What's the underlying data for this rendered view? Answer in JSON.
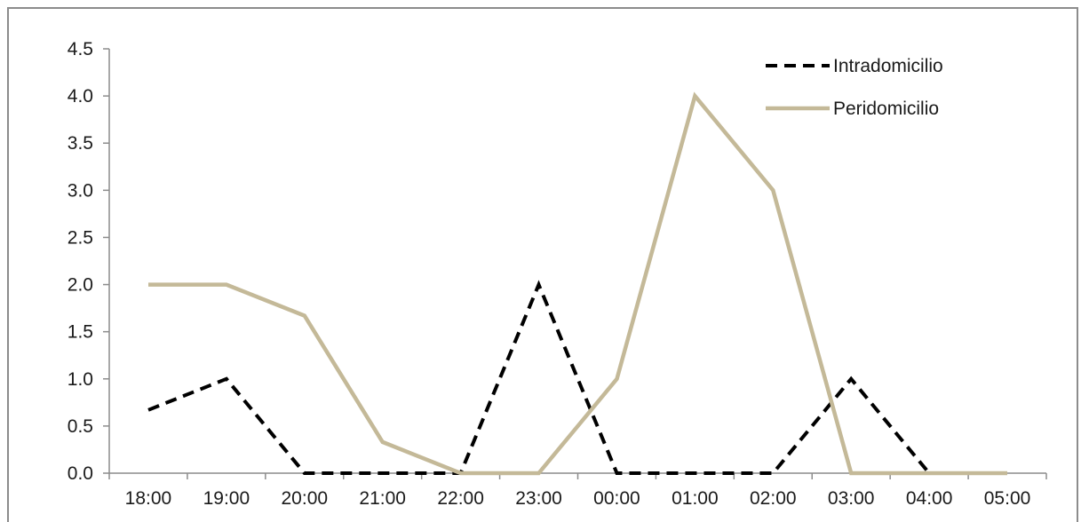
{
  "chart_data": {
    "type": "line",
    "title": "",
    "xlabel": "",
    "ylabel": "",
    "categories": [
      "18:00",
      "19:00",
      "20:00",
      "21:00",
      "22:00",
      "23:00",
      "00:00",
      "01:00",
      "02:00",
      "03:00",
      "04:00",
      "05:00"
    ],
    "ylim": [
      0,
      4.5
    ],
    "yticks": [
      "0.0",
      "0.5",
      "1.0",
      "1.5",
      "2.0",
      "2.5",
      "3.0",
      "3.5",
      "4.0",
      "4.5"
    ],
    "grid": false,
    "legend_position": "top-right",
    "series": [
      {
        "name": "Intradomicilio",
        "color": "#000000",
        "style": "dashed",
        "values": [
          0.67,
          1.0,
          0,
          0,
          0,
          2.0,
          0,
          0,
          0,
          1.0,
          0,
          null
        ]
      },
      {
        "name": "Peridomicilio",
        "color": "#c4b998",
        "style": "solid",
        "values": [
          2.0,
          2.0,
          1.67,
          0.33,
          0,
          0,
          1.0,
          4.0,
          3.0,
          0,
          0,
          0
        ]
      }
    ]
  }
}
